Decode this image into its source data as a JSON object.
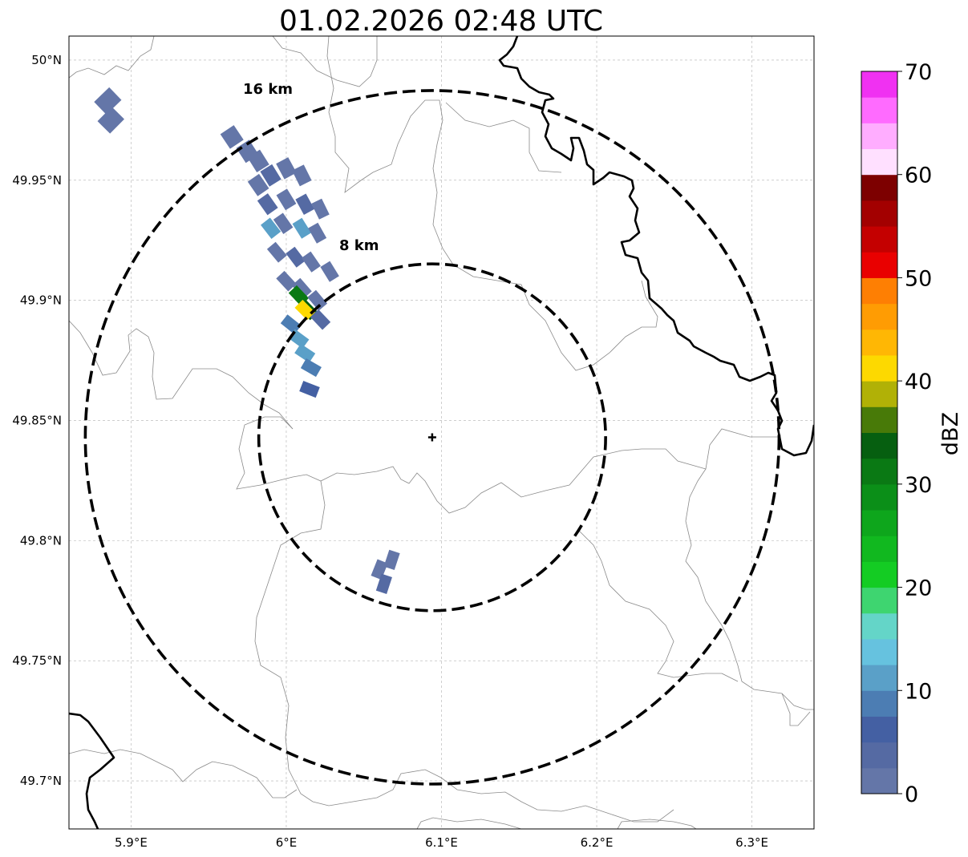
{
  "title": "01.02.2026 02:48 UTC",
  "map": {
    "lon_range": [
      5.86,
      6.34
    ],
    "lat_range": [
      49.68,
      50.01
    ],
    "gridlines": true,
    "lon_ticks": [
      {
        "value": 5.9,
        "label": "5.9°E"
      },
      {
        "value": 6.0,
        "label": "6°E"
      },
      {
        "value": 6.1,
        "label": "6.1°E"
      },
      {
        "value": 6.2,
        "label": "6.2°E"
      },
      {
        "value": 6.3,
        "label": "6.3°E"
      }
    ],
    "lat_ticks": [
      {
        "value": 50.0,
        "label": "50°N"
      },
      {
        "value": 49.95,
        "label": "49.95°N"
      },
      {
        "value": 49.9,
        "label": "49.9°N"
      },
      {
        "value": 49.85,
        "label": "49.85°N"
      },
      {
        "value": 49.8,
        "label": "49.8°N"
      },
      {
        "value": 49.75,
        "label": "49.75°N"
      },
      {
        "value": 49.7,
        "label": "49.7°N"
      }
    ],
    "radar_site": {
      "lon": 6.094,
      "lat": 49.843
    },
    "range_rings": [
      {
        "radius_km": 8,
        "label": "8 km"
      },
      {
        "radius_km": 16,
        "label": "16 km"
      }
    ]
  },
  "colorbar": {
    "label": "dBZ",
    "min": 0,
    "max": 70,
    "step": 2.5,
    "ticks": [
      "0",
      "10",
      "20",
      "30",
      "40",
      "50",
      "60",
      "70"
    ],
    "colors": [
      "#6476a8",
      "#556aa3",
      "#4460a3",
      "#4c7db3",
      "#5aa0c8",
      "#66c2df",
      "#64d5c8",
      "#3ed570",
      "#14cc23",
      "#11b81f",
      "#0ea61c",
      "#0b8f18",
      "#0a7914",
      "#065f10",
      "#487a08",
      "#b1b106",
      "#fdd900",
      "#ffb704",
      "#ff9c03",
      "#fe7f03",
      "#e90000",
      "#c40000",
      "#a30000",
      "#7d0000",
      "#ffe0ff",
      "#ffadff",
      "#ff6bff",
      "#f031f2"
    ]
  },
  "echo_cells": [
    {
      "lon": 5.885,
      "lat": 49.983,
      "dbz": 1
    },
    {
      "lon": 5.887,
      "lat": 49.975,
      "dbz": 1
    },
    {
      "lon": 5.965,
      "lat": 49.968,
      "dbz": 1
    },
    {
      "lon": 5.975,
      "lat": 49.962,
      "dbz": 1
    },
    {
      "lon": 5.982,
      "lat": 49.958,
      "dbz": 2
    },
    {
      "lon": 5.982,
      "lat": 49.948,
      "dbz": 1
    },
    {
      "lon": 5.99,
      "lat": 49.952,
      "dbz": 3
    },
    {
      "lon": 6.0,
      "lat": 49.955,
      "dbz": 1
    },
    {
      "lon": 6.01,
      "lat": 49.952,
      "dbz": 2
    },
    {
      "lon": 5.988,
      "lat": 49.94,
      "dbz": 4
    },
    {
      "lon": 6.0,
      "lat": 49.942,
      "dbz": 1
    },
    {
      "lon": 6.012,
      "lat": 49.94,
      "dbz": 3
    },
    {
      "lon": 6.022,
      "lat": 49.938,
      "dbz": 1
    },
    {
      "lon": 5.99,
      "lat": 49.93,
      "dbz": 12
    },
    {
      "lon": 5.998,
      "lat": 49.932,
      "dbz": 2
    },
    {
      "lon": 6.01,
      "lat": 49.93,
      "dbz": 11
    },
    {
      "lon": 6.02,
      "lat": 49.928,
      "dbz": 2
    },
    {
      "lon": 5.994,
      "lat": 49.92,
      "dbz": 1
    },
    {
      "lon": 6.006,
      "lat": 49.918,
      "dbz": 3
    },
    {
      "lon": 6.016,
      "lat": 49.916,
      "dbz": 2
    },
    {
      "lon": 6.028,
      "lat": 49.912,
      "dbz": 1
    },
    {
      "lon": 6.0,
      "lat": 49.908,
      "dbz": 2
    },
    {
      "lon": 6.01,
      "lat": 49.905,
      "dbz": 2
    },
    {
      "lon": 6.008,
      "lat": 49.902,
      "dbz": 31
    },
    {
      "lon": 6.014,
      "lat": 49.896,
      "dbz": 33
    },
    {
      "lon": 6.012,
      "lat": 49.896,
      "dbz": 42
    },
    {
      "lon": 6.02,
      "lat": 49.9,
      "dbz": 2
    },
    {
      "lon": 6.003,
      "lat": 49.89,
      "dbz": 8
    },
    {
      "lon": 6.008,
      "lat": 49.884,
      "dbz": 11
    },
    {
      "lon": 6.012,
      "lat": 49.878,
      "dbz": 10
    },
    {
      "lon": 6.016,
      "lat": 49.872,
      "dbz": 9
    },
    {
      "lon": 6.015,
      "lat": 49.863,
      "dbz": 7
    },
    {
      "lon": 6.022,
      "lat": 49.892,
      "dbz": 3
    },
    {
      "lon": 6.06,
      "lat": 49.788,
      "dbz": 1
    },
    {
      "lon": 6.068,
      "lat": 49.792,
      "dbz": 2
    },
    {
      "lon": 6.063,
      "lat": 49.782,
      "dbz": 3
    }
  ]
}
